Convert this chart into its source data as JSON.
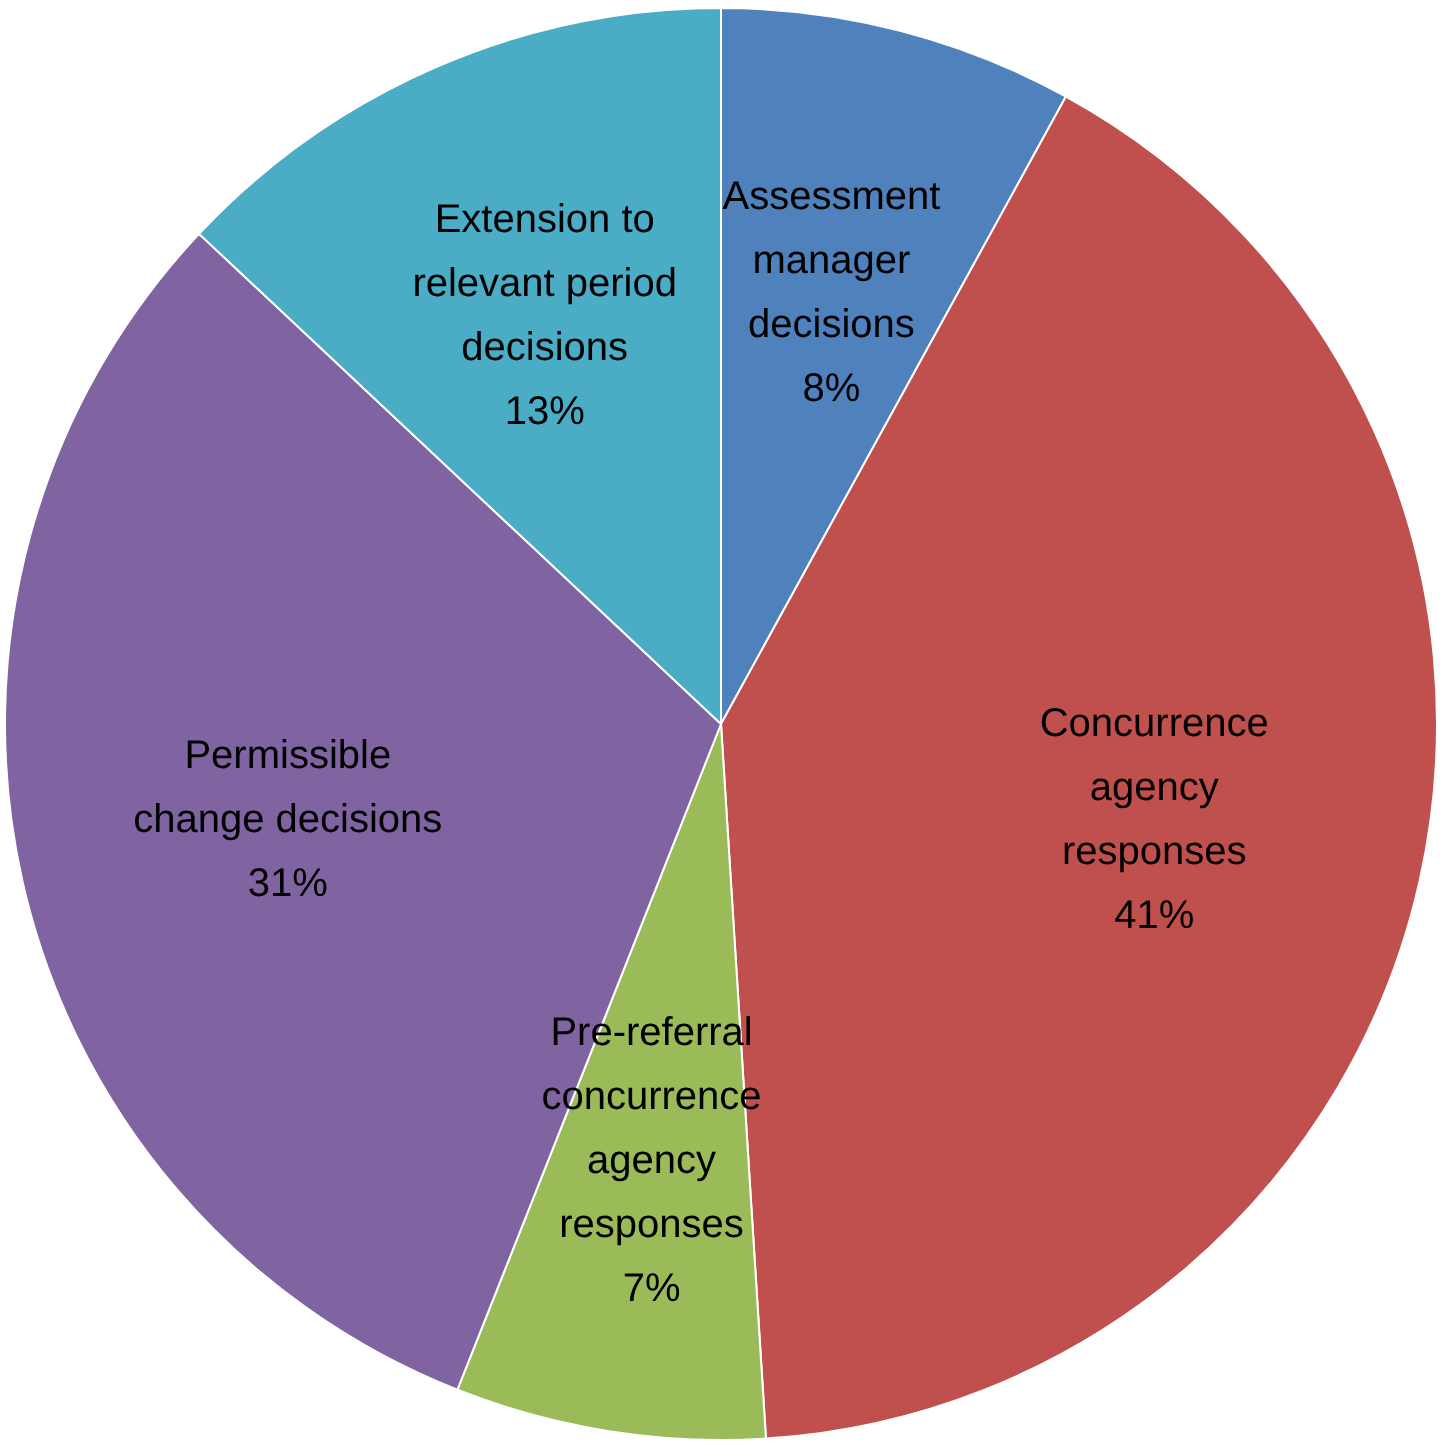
{
  "chart_data": {
    "type": "pie",
    "categories": [
      "Assessment manager decisions",
      "Concurrence agency responses",
      "Pre-referral concurrence agency responses",
      "Permissible change decisions",
      "Extension to relevant period decisions"
    ],
    "values": [
      8,
      41,
      7,
      31,
      13
    ],
    "colors": [
      "#4f81bd",
      "#c0504d",
      "#9bbb59",
      "#8064a2",
      "#4bacc6"
    ],
    "value_labels": [
      "8%",
      "41%",
      "7%",
      "31%",
      "13%"
    ],
    "legend": false
  }
}
